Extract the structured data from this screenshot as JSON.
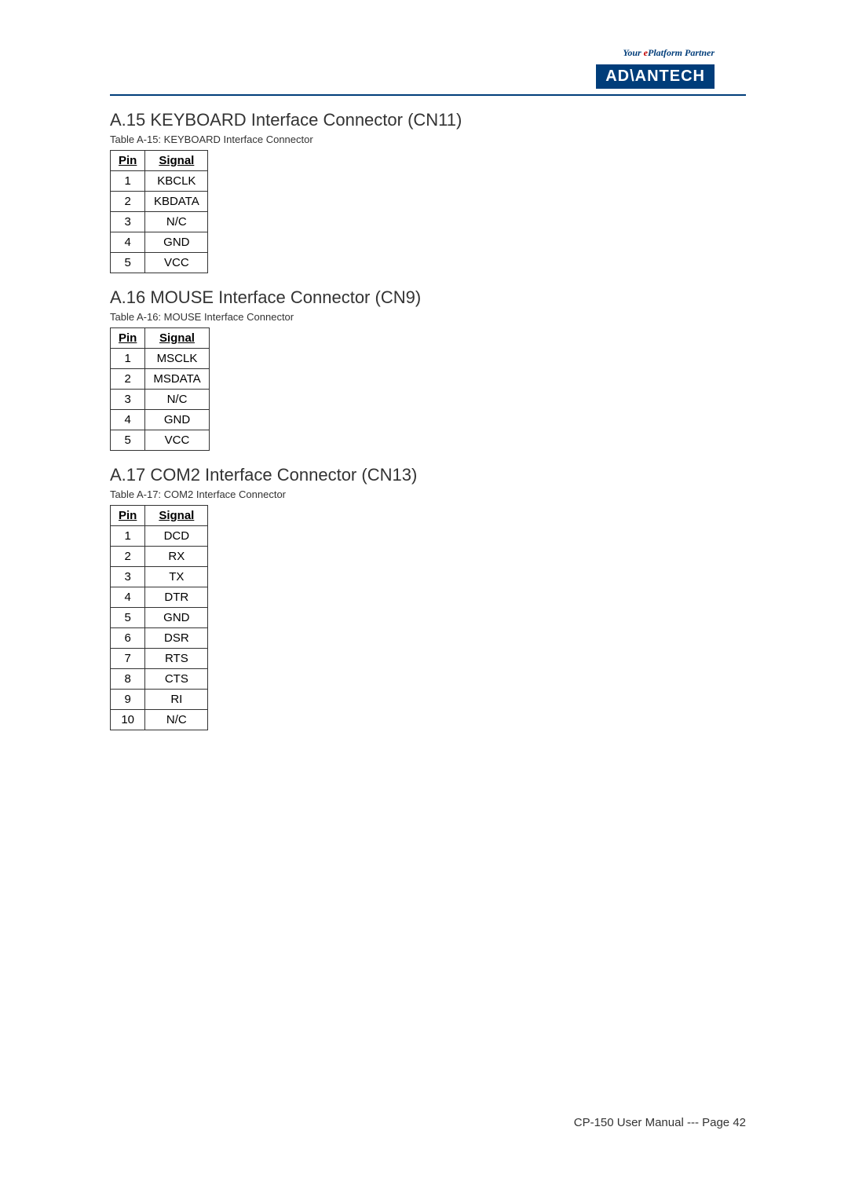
{
  "header": {
    "tagline_prefix": "Your ",
    "tagline_italic": "e",
    "tagline_suffix": "Platform Partner",
    "tagline_color_prefix": "#003d7a",
    "tagline_color_italic": "#c00000",
    "logo_text": "AD\\ANTECH",
    "logo_bg": "#003d7a"
  },
  "sections": [
    {
      "title": "A.15 KEYBOARD Interface Connector (CN11)",
      "caption_label": "Table A-15: ",
      "caption_text": "KEYBOARD Interface Connector",
      "columns": [
        "Pin",
        "Signal"
      ],
      "rows": [
        [
          "1",
          "KBCLK"
        ],
        [
          "2",
          "KBDATA"
        ],
        [
          "3",
          "N/C"
        ],
        [
          "4",
          "GND"
        ],
        [
          "5",
          "VCC"
        ]
      ]
    },
    {
      "title": "A.16 MOUSE Interface Connector (CN9)",
      "caption_label": "Table A-16: ",
      "caption_text": "MOUSE Interface Connector",
      "columns": [
        "Pin",
        "Signal"
      ],
      "rows": [
        [
          "1",
          "MSCLK"
        ],
        [
          "2",
          "MSDATA"
        ],
        [
          "3",
          "N/C"
        ],
        [
          "4",
          "GND"
        ],
        [
          "5",
          "VCC"
        ]
      ]
    },
    {
      "title": "A.17 COM2 Interface Connector (CN13)",
      "caption_label": "Table A-17: ",
      "caption_text": "COM2 Interface Connector",
      "columns": [
        "Pin",
        "Signal"
      ],
      "rows": [
        [
          "1",
          "DCD"
        ],
        [
          "2",
          "RX"
        ],
        [
          "3",
          "TX"
        ],
        [
          "4",
          "DTR"
        ],
        [
          "5",
          "GND"
        ],
        [
          "6",
          "DSR"
        ],
        [
          "7",
          "RTS"
        ],
        [
          "8",
          "CTS"
        ],
        [
          "9",
          "RI"
        ],
        [
          "10",
          "N/C"
        ]
      ]
    }
  ],
  "footer": {
    "text": "CP-150 User Manual --- Page  42"
  }
}
